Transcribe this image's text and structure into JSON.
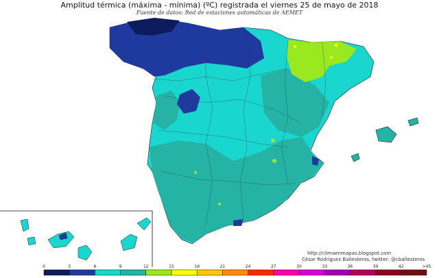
{
  "title": "Amplitud térmica (máxima - mínima) (ºC) registrada el viernes 25 de mayo de 2018",
  "subtitle": "Fuente de datos: Red de estaciones automáticas de AEMET",
  "credits": {
    "url": "http://climaenmapas.blogspot.com",
    "author": "César Rodríguez Ballesteros, twitter: @cballesteros"
  },
  "legend": {
    "bins": [
      {
        "from": 0,
        "to": 3,
        "color": "#0c1a5e"
      },
      {
        "from": 3,
        "to": 6,
        "color": "#1f3a9e"
      },
      {
        "from": 6,
        "to": 9,
        "color": "#19d6cf"
      },
      {
        "from": 9,
        "to": 12,
        "color": "#24b3a5"
      },
      {
        "from": 12,
        "to": 15,
        "color": "#9ae81f"
      },
      {
        "from": 15,
        "to": 18,
        "color": "#ffff00"
      },
      {
        "from": 18,
        "to": 21,
        "color": "#ffc800"
      },
      {
        "from": 21,
        "to": 24,
        "color": "#ff8c00"
      },
      {
        "from": 24,
        "to": 27,
        "color": "#ff2a00"
      },
      {
        "from": 27,
        "to": 30,
        "color": "#ff00aa"
      },
      {
        "from": 30,
        "to": 33,
        "color": "#d600d6"
      },
      {
        "from": 33,
        "to": 36,
        "color": "#a100b0"
      },
      {
        "from": 36,
        "to": 39,
        "color": "#b0005a"
      },
      {
        "from": 39,
        "to": 42,
        "color": "#8c0020"
      },
      {
        "from": 42,
        "to": 45,
        "color": "#6e1010"
      }
    ],
    "tick_labels": [
      "0",
      "3",
      "6",
      "9",
      "12",
      "15",
      "18",
      "21",
      "24",
      "27",
      "30",
      "33",
      "36",
      "39",
      "42",
      ">45"
    ]
  }
}
